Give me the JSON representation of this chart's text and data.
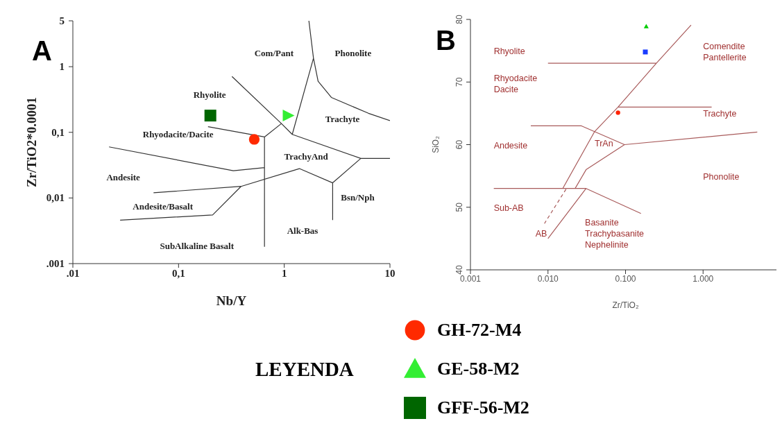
{
  "chart_data": [
    {
      "type": "scatter",
      "title": "A",
      "xlabel": "Nb/Y",
      "ylabel": "Zr/TiO2*0.0001",
      "log": "xy",
      "xlim": [
        0.01,
        10
      ],
      "ylim": [
        0.001,
        5
      ],
      "xticks": [
        {
          "value": 0.01,
          "label": ".01"
        },
        {
          "value": 0.1,
          "label": "0,1"
        },
        1,
        10
      ],
      "yticks": [
        {
          "value": 0.001,
          "label": ".001"
        },
        {
          "value": 0.01,
          "label": "0,01"
        },
        {
          "value": 0.1,
          "label": "0,1"
        },
        1,
        5
      ],
      "legend": "bottom",
      "legend_title": "LEYENDA",
      "annotations": [
        "Com/Pant",
        "Phonolite",
        "Rhyolite",
        "Rhyodacite/Dacite",
        "Trachyte",
        "TrachyAnd",
        "Andesite",
        "Andesite/Basalt",
        "Bsn/Nph",
        "Alk-Bas",
        "SubAlkaline Basalt"
      ],
      "series": [
        {
          "type": "scatter",
          "name": "GH-72-M4",
          "color": "#ff2a00",
          "marker": "circle",
          "x": [
            0.52
          ],
          "values": [
            0.078
          ]
        },
        {
          "type": "scatter",
          "name": "GE-58-M2",
          "color": "#33ee33",
          "marker": "triangle",
          "x": [
            1.1
          ],
          "values": [
            0.18
          ]
        },
        {
          "type": "scatter",
          "name": "GFF-56-M2",
          "color": "#006600",
          "marker": "square",
          "x": [
            0.2
          ],
          "values": [
            0.18
          ]
        },
        {
          "type": "line",
          "color": "#333333",
          "marker": "none",
          "x": [
            1.71,
            1.89,
            2.09,
            2.79,
            6.26,
            10,
            null,
            1.89,
            1.19,
            null,
            0.32,
            0.94,
            1.19,
            5.3,
            10,
            null,
            0.94,
            0.65,
            0.65,
            null,
            0.19,
            0.65,
            null,
            0.022,
            0.33,
            0.65,
            null,
            0.058,
            0.39,
            1.39,
            2.87,
            5.3,
            null,
            2.87,
            2.87,
            null,
            0.028,
            0.21,
            0.39
          ],
          "values": [
            5,
            1.35,
            0.6,
            0.34,
            0.195,
            0.151,
            null,
            1.35,
            0.093,
            null,
            0.71,
            0.136,
            0.093,
            0.04,
            0.04,
            null,
            0.136,
            0.085,
            0.0018,
            null,
            0.122,
            0.085,
            null,
            0.06,
            0.026,
            0.029,
            null,
            0.012,
            0.015,
            0.028,
            0.017,
            0.04,
            null,
            0.017,
            0.0046,
            null,
            0.0046,
            0.0055,
            0.015
          ]
        }
      ]
    },
    {
      "type": "scatter",
      "title": "B",
      "xlabel": "Zr/TiO₂",
      "ylabel": "SiO₂",
      "log": "x",
      "xlim": [
        0.001,
        10
      ],
      "ylim": [
        40,
        80
      ],
      "xticks": [
        {
          "value": 0.001,
          "label": "0.001"
        },
        {
          "value": 0.01,
          "label": "0.010"
        },
        {
          "value": 0.1,
          "label": "0.100"
        },
        {
          "value": 1,
          "label": "1.000"
        }
      ],
      "yticks": [
        40,
        50,
        60,
        70,
        80
      ],
      "annotations": [
        "Rhyolite",
        "Rhyodacite\nDacite",
        "Comendite\nPantellerite",
        "Trachyte",
        "Andesite",
        "TrAn",
        "Phonolite",
        "Sub-AB",
        "AB",
        "Basanite\nTrachybasanite\nNephelinite"
      ],
      "series": [
        {
          "type": "scatter",
          "color": "#ff2200",
          "marker": "circle",
          "x": [
            0.08
          ],
          "values": [
            65.1
          ]
        },
        {
          "type": "scatter",
          "color": "#00cc00",
          "marker": "triangle",
          "x": [
            0.185
          ],
          "values": [
            78.9
          ]
        },
        {
          "type": "scatter",
          "color": "#1a3cff",
          "marker": "square",
          "x": [
            0.18
          ],
          "values": [
            74.8
          ]
        },
        {
          "type": "line",
          "color": "#a85a5a",
          "marker": "none",
          "x": [
            0.7,
            0.25,
            0.08,
            0.04,
            0.0155,
            null,
            0.01,
            0.25,
            null,
            0.08,
            1.29,
            null,
            0.006,
            0.027,
            0.097,
            5,
            null,
            0.097,
            0.031,
            0.0224,
            null,
            0.002,
            0.031,
            0.158,
            null,
            0.031,
            0.01
          ],
          "values": [
            79.1,
            73,
            66,
            62.1,
            53,
            null,
            73,
            73,
            null,
            66,
            66,
            null,
            63,
            63,
            60,
            62,
            null,
            60,
            56,
            53,
            null,
            53,
            53,
            49,
            null,
            53,
            45
          ]
        },
        {
          "type": "line",
          "color": "#a85a5a",
          "marker": "none",
          "line_style": "dashed",
          "x": [
            0.0171,
            0.009
          ],
          "values": [
            52.9,
            47.4
          ]
        }
      ]
    }
  ]
}
